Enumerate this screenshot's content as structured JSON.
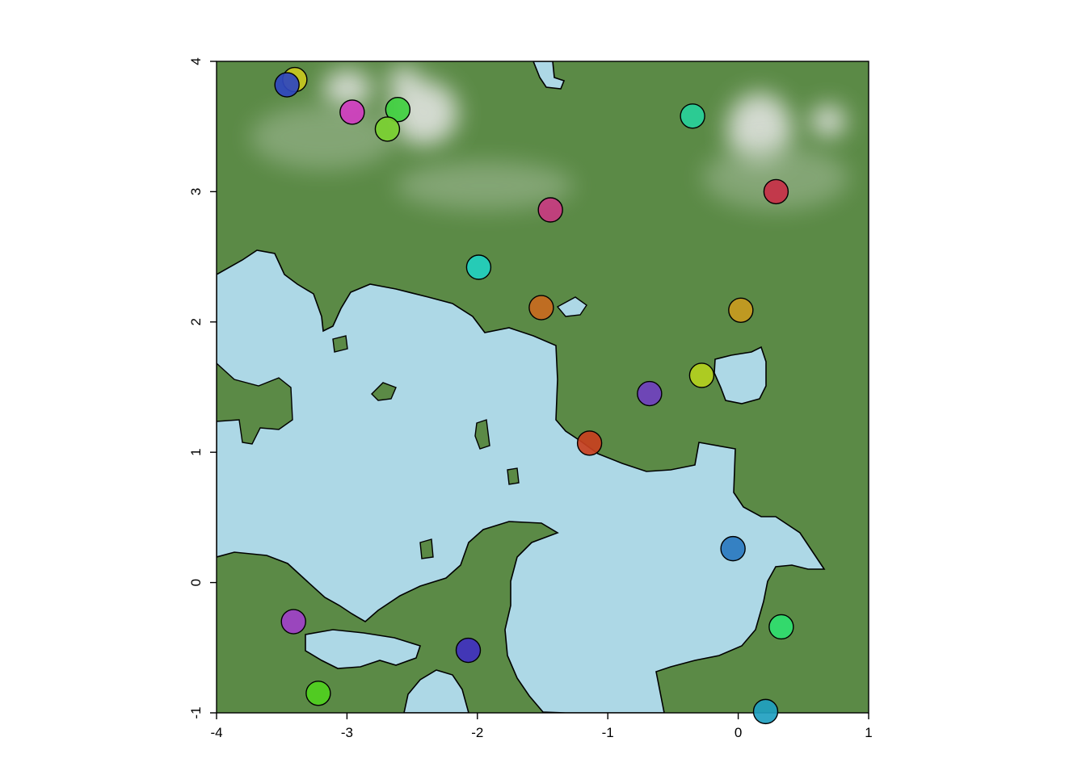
{
  "chart_data": {
    "type": "scatter",
    "title": "",
    "xlabel": "",
    "ylabel": "",
    "xlim": [
      -4,
      1
    ],
    "ylim": [
      -1,
      4
    ],
    "x_ticks": [
      "-4",
      "-3",
      "-2",
      "-1",
      "0",
      "1"
    ],
    "y_ticks": [
      "-1",
      "0",
      "1",
      "2",
      "3",
      "4"
    ],
    "grid": false,
    "background": "terrain raster: green land with light-blue water regions and white peaks",
    "colors": {
      "land": "#5b8a46",
      "water": "#add8e6",
      "peak": "#e6e6e6",
      "outline": "#000000"
    },
    "points": [
      {
        "x": -3.4,
        "y": 3.86,
        "color": "#c8c820"
      },
      {
        "x": -3.46,
        "y": 3.82,
        "color": "#2f46c0"
      },
      {
        "x": -2.96,
        "y": 3.61,
        "color": "#d03cc0"
      },
      {
        "x": -2.61,
        "y": 3.63,
        "color": "#40d040"
      },
      {
        "x": -2.69,
        "y": 3.48,
        "color": "#7ad030"
      },
      {
        "x": -0.35,
        "y": 3.58,
        "color": "#28d09a"
      },
      {
        "x": 0.29,
        "y": 3.0,
        "color": "#c83048"
      },
      {
        "x": -1.44,
        "y": 2.86,
        "color": "#c83a80"
      },
      {
        "x": -1.99,
        "y": 2.42,
        "color": "#22d0c0"
      },
      {
        "x": -1.51,
        "y": 2.11,
        "color": "#c86a20"
      },
      {
        "x": 0.02,
        "y": 2.09,
        "color": "#c89a20"
      },
      {
        "x": -0.28,
        "y": 1.59,
        "color": "#b4d020"
      },
      {
        "x": -0.68,
        "y": 1.45,
        "color": "#7040c0"
      },
      {
        "x": -1.14,
        "y": 1.07,
        "color": "#c84020"
      },
      {
        "x": -0.04,
        "y": 0.26,
        "color": "#2a7ac0"
      },
      {
        "x": -3.41,
        "y": -0.3,
        "color": "#a040c8"
      },
      {
        "x": 0.33,
        "y": -0.34,
        "color": "#30e070"
      },
      {
        "x": -2.07,
        "y": -0.52,
        "color": "#4030c0"
      },
      {
        "x": -3.22,
        "y": -0.85,
        "color": "#50d020"
      },
      {
        "x": 0.21,
        "y": -0.99,
        "color": "#20a0c0"
      }
    ]
  }
}
